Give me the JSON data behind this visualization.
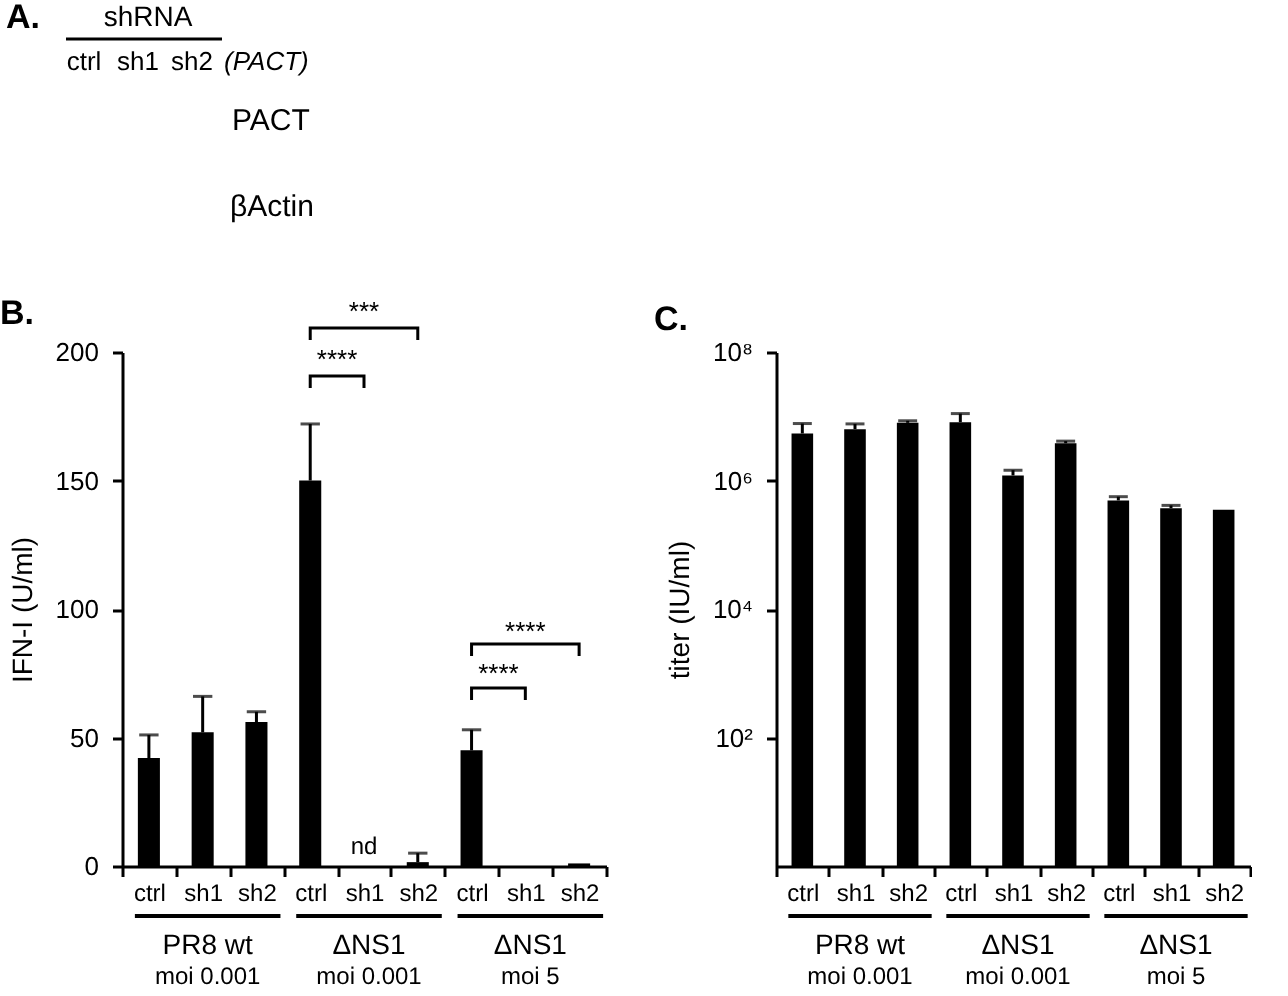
{
  "chart_data": [
    {
      "type": "other",
      "title": "A.",
      "annotations": [
        "shRNA",
        "ctrl",
        "sh1",
        "sh2",
        "(PACT)",
        "PACT",
        "βActin"
      ]
    },
    {
      "type": "bar",
      "title": "B.",
      "ylabel": "IFN-I (U/ml)",
      "categories": [
        "ctrl",
        "sh1",
        "sh2",
        "ctrl",
        "sh1",
        "sh2",
        "ctrl",
        "sh1",
        "sh2"
      ],
      "color": "#000000",
      "values": [
        42,
        52,
        56,
        150,
        null,
        1.5,
        45,
        null,
        1
      ],
      "errors": [
        [
          42,
          51
        ],
        [
          52,
          66
        ],
        [
          56,
          60
        ],
        [
          150,
          172
        ],
        null,
        [
          1.5,
          5
        ],
        [
          45,
          53
        ],
        null,
        null
      ],
      "value_labels": [
        null,
        null,
        null,
        null,
        "nd",
        null,
        null,
        null,
        null
      ],
      "ylim": [
        0,
        200
      ],
      "yticks": [
        0,
        50,
        100,
        150,
        200
      ],
      "annotations": [
        "PR8 wt",
        "moi 0.001",
        "ΔNS1",
        "moi 0.001",
        "ΔNS1",
        "moi 5",
        "***",
        "****",
        "****",
        "****"
      ]
    },
    {
      "type": "bar",
      "title": "C.",
      "ylabel": "titer (IU/ml)",
      "categories": [
        "ctrl",
        "sh1",
        "sh2",
        "ctrl",
        "sh1",
        "sh2",
        "ctrl",
        "sh1",
        "sh2"
      ],
      "color": "#000000",
      "values": [
        5400000,
        6300000,
        7900000,
        8100000,
        1200000,
        3800000,
        490000,
        370000,
        350000
      ],
      "errors": [
        [
          5400000,
          7700000
        ],
        [
          6300000,
          7600000
        ],
        [
          7900000,
          8500000
        ],
        [
          8100000,
          11000000
        ],
        [
          1200000,
          1450000
        ],
        [
          3800000,
          4100000
        ],
        [
          490000,
          560000
        ],
        [
          370000,
          410000
        ],
        null
      ],
      "log": true,
      "ylim": [
        1,
        100000000
      ],
      "yticks": [
        {
          "value": 100,
          "label": "10²"
        },
        {
          "value": 10000,
          "label": "10⁴"
        },
        {
          "value": 1000000,
          "label": "10⁶"
        },
        {
          "value": 100000000,
          "label": "10⁸"
        }
      ],
      "annotations": [
        "PR8 wt",
        "moi 0.001",
        "ΔNS1",
        "moi 0.001",
        "ΔNS1",
        "moi 5"
      ]
    }
  ]
}
